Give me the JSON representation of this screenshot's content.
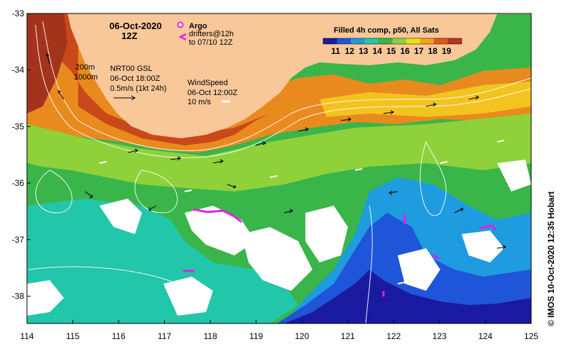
{
  "header": {
    "date": "06-Oct-2020",
    "time": "12Z"
  },
  "legend": {
    "argo_label": "Argo",
    "drifters_line1": "drifters@12h",
    "drifters_line2": "to 07/10 12Z",
    "colorbar_title": "Filled 4h comp, p50, All Sats",
    "colorbar_ticks": [
      "11",
      "12",
      "13",
      "14",
      "15",
      "16",
      "17",
      "18",
      "19"
    ],
    "colorbar_colors": [
      "#1a1aa0",
      "#1f55d8",
      "#1f9be0",
      "#22c6a8",
      "#39b54a",
      "#8fd13a",
      "#e6e21a",
      "#f7a21b",
      "#e35a14",
      "#b5371a"
    ],
    "contour_200": "200m",
    "contour_1000": "1000m"
  },
  "currents": {
    "title": "NRT00 GSL",
    "time": "06-Oct 18:00Z",
    "scale": "0.5m/s (1kt 24h)"
  },
  "wind": {
    "title": "WindSpeed",
    "time": "06-Oct 12:00Z",
    "scale": "10 m/s"
  },
  "axes": {
    "x_ticks": [
      "114",
      "115",
      "116",
      "117",
      "118",
      "119",
      "120",
      "121",
      "122",
      "123",
      "124",
      "125"
    ],
    "y_ticks": [
      "-33",
      "-34",
      "-35",
      "-36",
      "-37",
      "-38"
    ]
  },
  "credit": "© IMOS 10-Oct-2020 12:35 Hobart",
  "colors": {
    "land": "#f8c79a",
    "drifter": "#e81ee0",
    "cold": "#1a1aa0",
    "warm": "#b5371a"
  }
}
